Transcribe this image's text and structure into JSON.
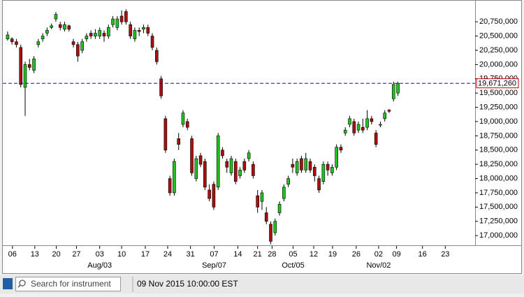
{
  "chart_data": {
    "type": "candlestick",
    "x": [
      0,
      1,
      2,
      3,
      4,
      5,
      6,
      7,
      8,
      9,
      10,
      11,
      12,
      13,
      14,
      15,
      16,
      17,
      18,
      19,
      20,
      21,
      22,
      23,
      24,
      25,
      26,
      27,
      28,
      29,
      30,
      31,
      32,
      33,
      34,
      35,
      36,
      37,
      38,
      39,
      40,
      41,
      42,
      43,
      44,
      45,
      46,
      47,
      48,
      49,
      50,
      51,
      52,
      53,
      54,
      55,
      56,
      57,
      58,
      59,
      60,
      61,
      62,
      63,
      64,
      65,
      66,
      67,
      68,
      69,
      70,
      71,
      72,
      73,
      74,
      75,
      76,
      77,
      78,
      79,
      80,
      81,
      82,
      83,
      84,
      85,
      86,
      87,
      88,
      89
    ],
    "open": [
      20450000,
      20450000,
      20400000,
      20300000,
      19600000,
      20000000,
      19900000,
      20350000,
      20450000,
      20550000,
      20650000,
      20800000,
      20700000,
      20620000,
      20680000,
      20400000,
      20350000,
      20250000,
      20450000,
      20550000,
      20500000,
      20500000,
      20550000,
      20500000,
      20700000,
      20650000,
      20850000,
      20930000,
      20700000,
      20450000,
      20600000,
      20620000,
      20650000,
      20500000,
      20250000,
      19750000,
      19050000,
      18000000,
      17750000,
      18700000,
      18950000,
      19000000,
      18700000,
      18000000,
      18400000,
      18300000,
      17800000,
      17900000,
      17850000,
      18500000,
      18300000,
      18100000,
      18300000,
      18050000,
      18300000,
      18350000,
      18250000,
      17700000,
      17600000,
      17400000,
      17200000,
      17050000,
      17400000,
      17650000,
      17900000,
      18250000,
      18100000,
      18350000,
      18150000,
      18300000,
      18200000,
      18000000,
      17950000,
      18250000,
      18100000,
      18200000,
      18550000,
      18800000,
      18950000,
      19000000,
      18850000,
      18900000,
      18900000,
      19050000,
      18800000,
      18950000,
      19050000,
      19200000,
      19400000,
      19500000
    ],
    "high": [
      20580000,
      20480000,
      20450000,
      20350000,
      20050000,
      20100000,
      20150000,
      20450000,
      20550000,
      20650000,
      20720000,
      20920000,
      20750000,
      20750000,
      20700000,
      20450000,
      20400000,
      20450000,
      20550000,
      20600000,
      20620000,
      20650000,
      20600000,
      20700000,
      20850000,
      20850000,
      20950000,
      20970000,
      20750000,
      20650000,
      20650000,
      20700000,
      20700000,
      20550000,
      20300000,
      19800000,
      19100000,
      18050000,
      18350000,
      18800000,
      19200000,
      19050000,
      18750000,
      18400000,
      18450000,
      18350000,
      17900000,
      17950000,
      18800000,
      18550000,
      18350000,
      18400000,
      18350000,
      18200000,
      18350000,
      18500000,
      18300000,
      17800000,
      17800000,
      17500000,
      17250000,
      17300000,
      17600000,
      17900000,
      18050000,
      18350000,
      18350000,
      18400000,
      18450000,
      18350000,
      18250000,
      18050000,
      18300000,
      18300000,
      18250000,
      18600000,
      18600000,
      18900000,
      19100000,
      19050000,
      19000000,
      19050000,
      19200000,
      19100000,
      18850000,
      19000000,
      19200000,
      19220000,
      19700000,
      19700000
    ],
    "low": [
      20420000,
      20350000,
      20300000,
      19600000,
      19100000,
      19900000,
      19850000,
      20300000,
      20400000,
      20500000,
      20620000,
      20750000,
      20600000,
      20580000,
      20580000,
      20300000,
      20050000,
      20200000,
      20400000,
      20450000,
      20450000,
      20450000,
      20400000,
      20450000,
      20650000,
      20600000,
      20700000,
      20700000,
      20450000,
      20400000,
      20500000,
      20550000,
      20500000,
      20250000,
      20000000,
      19400000,
      18450000,
      17700000,
      17700000,
      18500000,
      18900000,
      18850000,
      18050000,
      17950000,
      18200000,
      17800000,
      17600000,
      17450000,
      17800000,
      18350000,
      18100000,
      18050000,
      17900000,
      18000000,
      18100000,
      18300000,
      18000000,
      17400000,
      17450000,
      17200000,
      16850000,
      17000000,
      17350000,
      17600000,
      17850000,
      18100000,
      18050000,
      18100000,
      18100000,
      18100000,
      17950000,
      17750000,
      17900000,
      18050000,
      18050000,
      18150000,
      18450000,
      18750000,
      18900000,
      18750000,
      18800000,
      18800000,
      18850000,
      18950000,
      18550000,
      18900000,
      19000000,
      19150000,
      19350000,
      19450000
    ],
    "close": [
      20520000,
      20400000,
      20350000,
      19650000,
      20000000,
      19950000,
      20100000,
      20400000,
      20500000,
      20600000,
      20680000,
      20880000,
      20650000,
      20700000,
      20620000,
      20350000,
      20150000,
      20400000,
      20500000,
      20500000,
      20550000,
      20600000,
      20500000,
      20650000,
      20800000,
      20800000,
      20750000,
      20750000,
      20500000,
      20600000,
      20580000,
      20650000,
      20550000,
      20300000,
      20050000,
      19450000,
      18500000,
      17750000,
      18300000,
      18600000,
      19150000,
      18900000,
      18100000,
      18350000,
      18250000,
      17850000,
      17650000,
      17500000,
      18750000,
      18400000,
      18200000,
      18350000,
      17950000,
      18150000,
      18150000,
      18450000,
      18050000,
      17500000,
      17750000,
      17250000,
      16900000,
      17250000,
      17550000,
      17850000,
      18000000,
      18200000,
      18300000,
      18150000,
      18350000,
      18150000,
      18050000,
      17800000,
      18250000,
      18150000,
      18200000,
      18550000,
      18500000,
      18850000,
      19050000,
      18800000,
      18950000,
      18850000,
      19050000,
      19000000,
      18600000,
      18950000,
      19150000,
      19180000,
      19650000,
      19670000
    ],
    "up_color": "#22c022",
    "down_color": "#a81010",
    "xlim": [
      -1.1,
      106.6
    ],
    "ylim": [
      16830000,
      21120000
    ],
    "yticks": [
      {
        "value": 17000000,
        "label": "17,000,000"
      },
      {
        "value": 17250000,
        "label": "17,250,000"
      },
      {
        "value": 17500000,
        "label": "17,500,000"
      },
      {
        "value": 17750000,
        "label": "17,750,000"
      },
      {
        "value": 18000000,
        "label": "18,000,000"
      },
      {
        "value": 18250000,
        "label": "18,250,000"
      },
      {
        "value": 18500000,
        "label": "18,500,000"
      },
      {
        "value": 18750000,
        "label": "18,750,000"
      },
      {
        "value": 19000000,
        "label": "19,000,000"
      },
      {
        "value": 19250000,
        "label": "19,250,000"
      },
      {
        "value": 19500000,
        "label": "19,500,000"
      },
      {
        "value": 19750000,
        "label": "19,750,000"
      },
      {
        "value": 20000000,
        "label": "20,000,000"
      },
      {
        "value": 20250000,
        "label": "20,250,000"
      },
      {
        "value": 20500000,
        "label": "20,500,000"
      },
      {
        "value": 20750000,
        "label": "20,750,000"
      }
    ],
    "xticks": [
      {
        "value": 1.1,
        "label": "06"
      },
      {
        "value": 6.2,
        "label": "13"
      },
      {
        "value": 11.1,
        "label": "20"
      },
      {
        "value": 15.7,
        "label": "27"
      },
      {
        "value": 21,
        "label": "03"
      },
      {
        "value": 26,
        "label": "10"
      },
      {
        "value": 31.4,
        "label": "17"
      },
      {
        "value": 36.5,
        "label": "24"
      },
      {
        "value": 41.7,
        "label": "31"
      },
      {
        "value": 47.1,
        "label": "07"
      },
      {
        "value": 52.5,
        "label": "14"
      },
      {
        "value": 57,
        "label": "21"
      },
      {
        "value": 60.3,
        "label": "28"
      },
      {
        "value": 65.1,
        "label": "05"
      },
      {
        "value": 69.8,
        "label": "12"
      },
      {
        "value": 74.1,
        "label": "19"
      },
      {
        "value": 79.5,
        "label": "26"
      },
      {
        "value": 84.6,
        "label": "02"
      },
      {
        "value": 88.7,
        "label": "09"
      },
      {
        "value": 94.6,
        "label": "16"
      },
      {
        "value": 99.8,
        "label": "23"
      }
    ],
    "month_labels": [
      {
        "value": 21,
        "label": "Aug/03"
      },
      {
        "value": 47.1,
        "label": "Sep/07"
      },
      {
        "value": 65.1,
        "label": "Oct/05"
      },
      {
        "value": 84.6,
        "label": "Nov/02"
      }
    ],
    "current_price": {
      "value": 19671260,
      "label": "19,671,260",
      "color": "#1010a0"
    }
  },
  "status_bar": {
    "search_placeholder": "Search for instrument",
    "datetime": "09 Nov 2015 10:00:00 EST"
  }
}
